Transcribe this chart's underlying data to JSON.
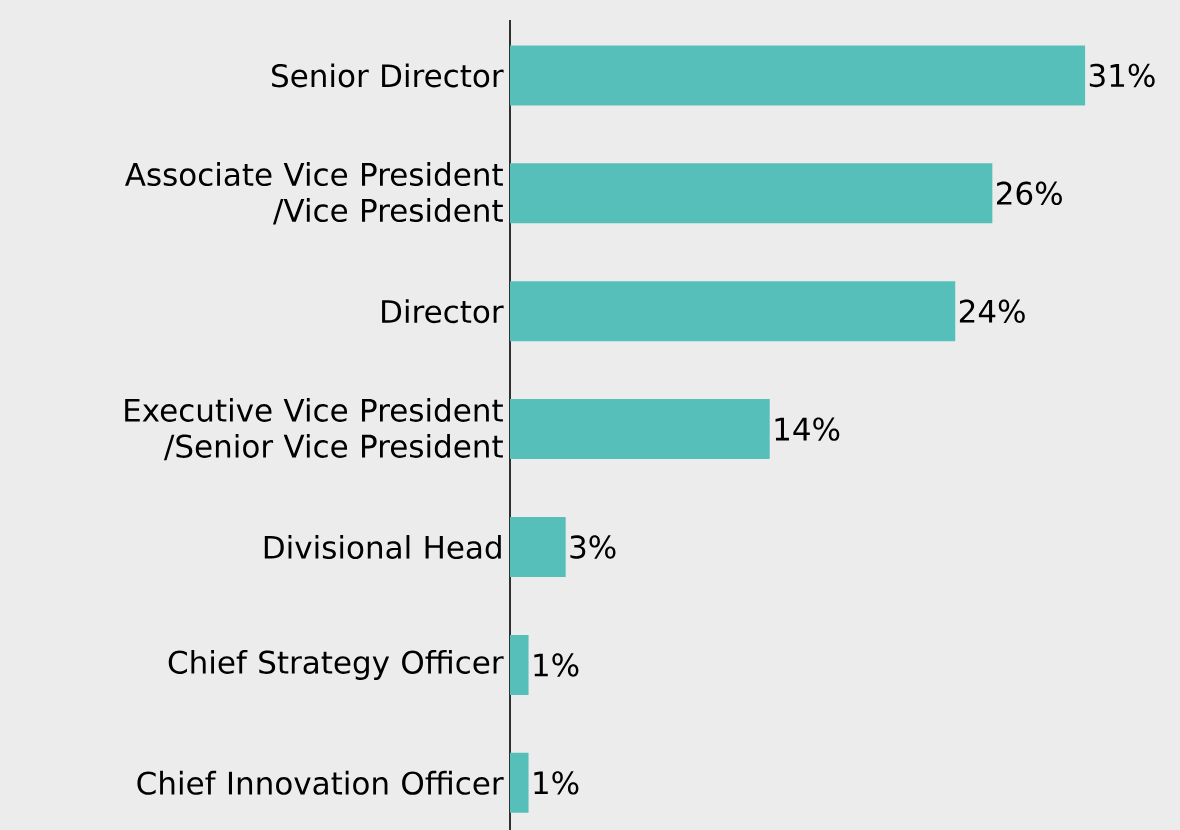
{
  "chart_data": {
    "type": "bar",
    "orientation": "horizontal",
    "categories": [
      "Senior Director",
      "Associate Vice President /Vice President",
      "Director",
      "Executive Vice President /Senior Vice President",
      "Divisional Head",
      "Chief Strategy Officer",
      "Chief Innovation Officer"
    ],
    "values": [
      31,
      26,
      24,
      14,
      3,
      1,
      1
    ],
    "value_labels": [
      "31%",
      "26%",
      "24%",
      "14%",
      "3%",
      "1%",
      "1%"
    ],
    "color": "#56bfb9"
  }
}
